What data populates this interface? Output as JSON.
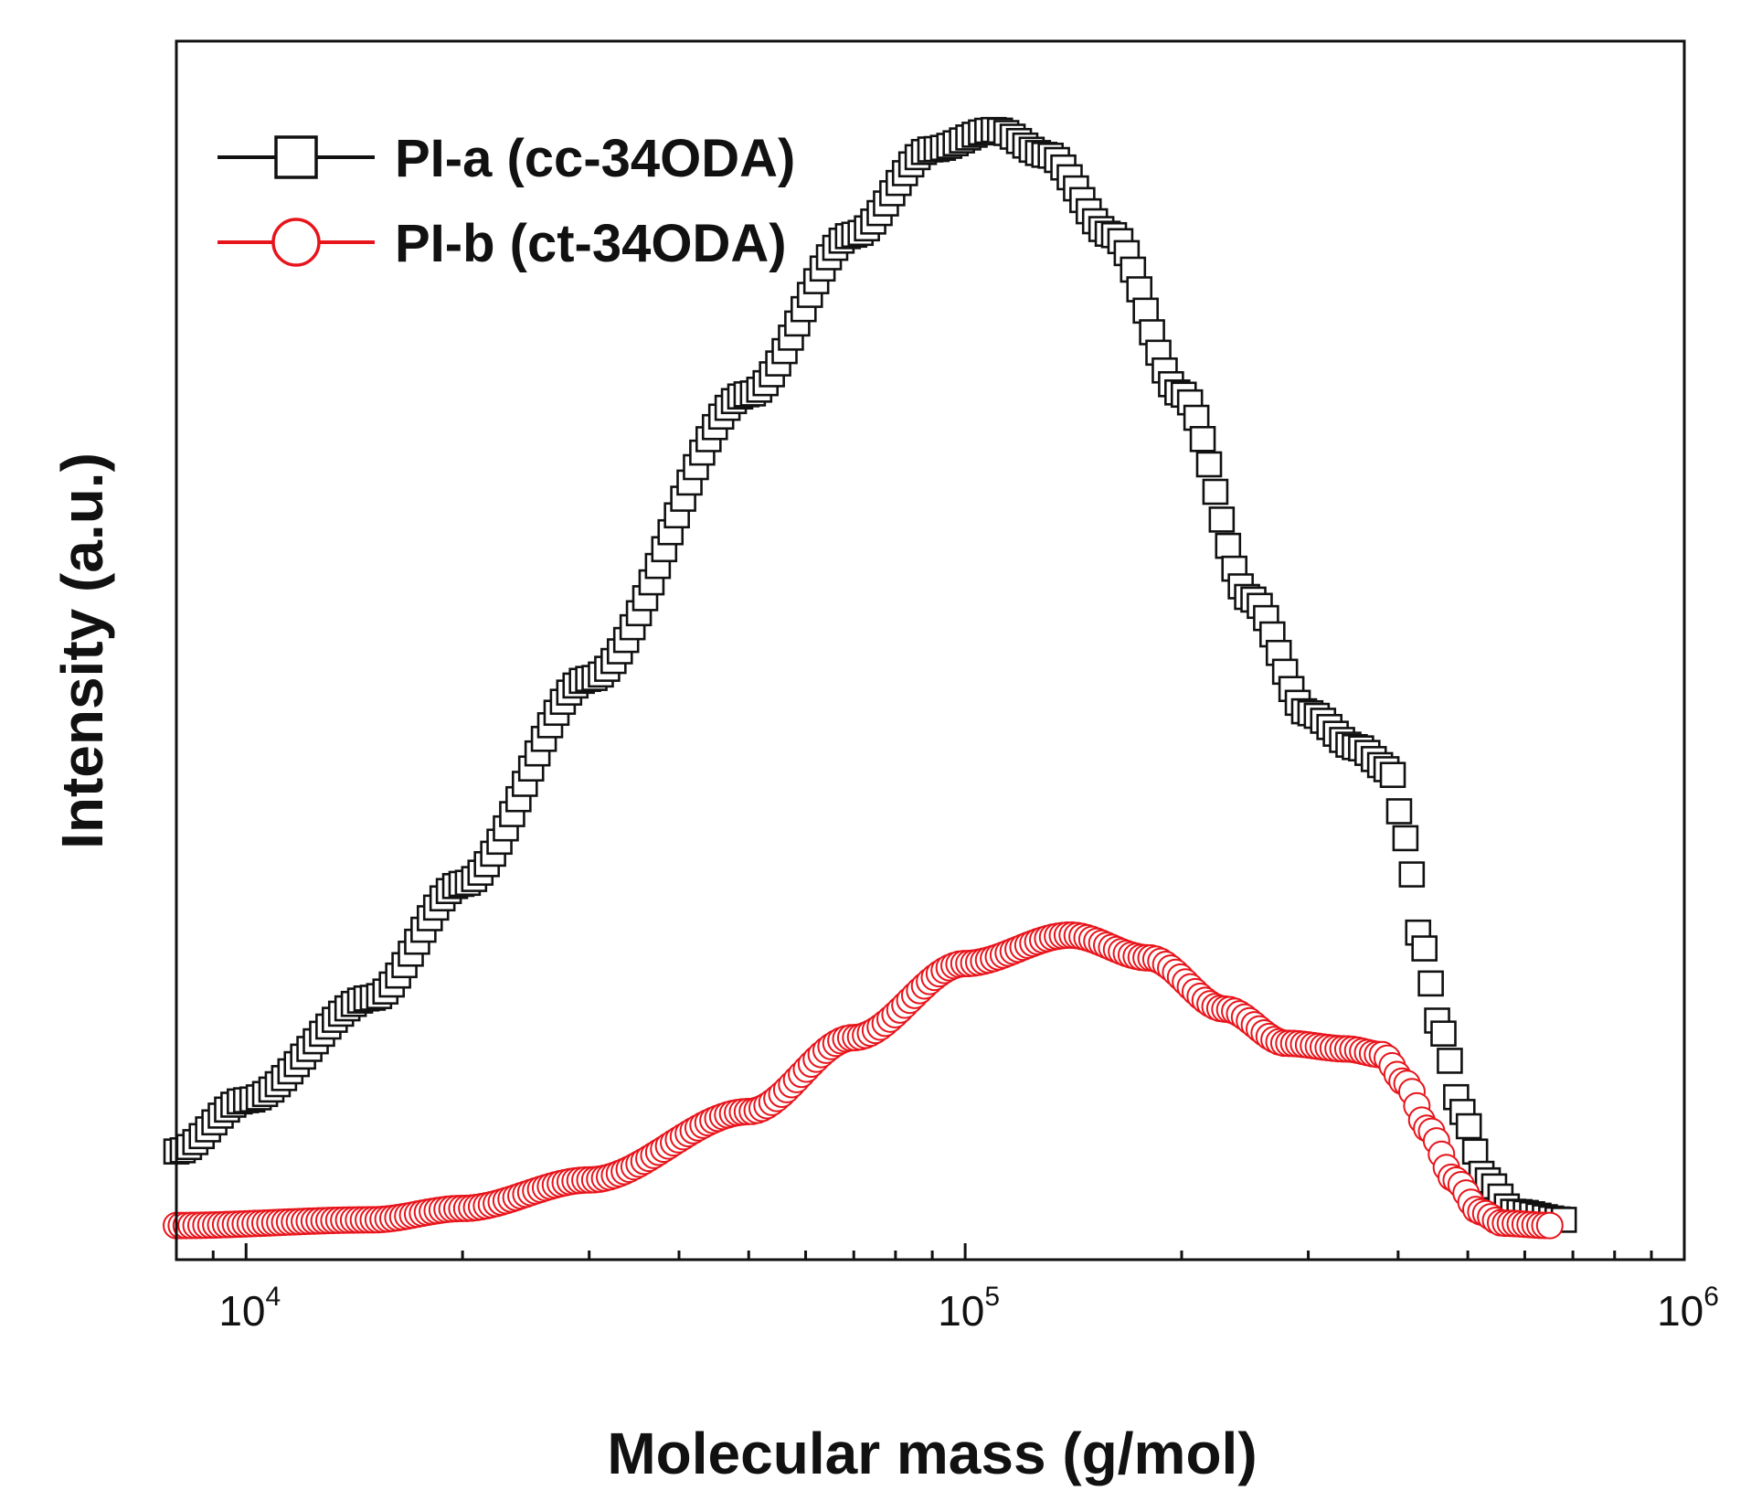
{
  "chart_data": {
    "type": "scatter",
    "xscale": "log",
    "xlabel": "Molecular mass (g/mol)",
    "ylabel": "Intensity (a.u.)",
    "xlim": [
      8000,
      1000000
    ],
    "ylim": [
      -0.03,
      1.04
    ],
    "yticks_shown": false,
    "legend_position": "top-left",
    "xticks": [
      {
        "value": 10000,
        "base": "10",
        "exp": "4"
      },
      {
        "value": 100000,
        "base": "10",
        "exp": "5"
      },
      {
        "value": 1000000,
        "base": "10",
        "exp": "6"
      }
    ],
    "series": [
      {
        "name": "PI-a (cc-34ODA)",
        "marker": "square",
        "color": "#111111",
        "x_start": 8000,
        "x_end": 680000,
        "n_points": 220,
        "anchors": [
          [
            8000,
            0.065
          ],
          [
            10000,
            0.11
          ],
          [
            15000,
            0.2
          ],
          [
            20000,
            0.3
          ],
          [
            30000,
            0.48
          ],
          [
            50000,
            0.73
          ],
          [
            70000,
            0.87
          ],
          [
            90000,
            0.945
          ],
          [
            110000,
            0.962
          ],
          [
            130000,
            0.94
          ],
          [
            160000,
            0.87
          ],
          [
            200000,
            0.73
          ],
          [
            250000,
            0.55
          ],
          [
            300000,
            0.45
          ],
          [
            350000,
            0.42
          ],
          [
            390000,
            0.4
          ],
          [
            410000,
            0.34
          ],
          [
            430000,
            0.25
          ],
          [
            460000,
            0.17
          ],
          [
            490000,
            0.1
          ],
          [
            530000,
            0.04
          ],
          [
            580000,
            0.012
          ],
          [
            680000,
            0.005
          ]
        ]
      },
      {
        "name": "PI-b (ct-34ODA)",
        "marker": "circle",
        "color": "#e8141b",
        "x_start": 8000,
        "x_end": 650000,
        "n_points": 280,
        "anchors": [
          [
            8000,
            0.0
          ],
          [
            15000,
            0.005
          ],
          [
            20000,
            0.015
          ],
          [
            30000,
            0.04
          ],
          [
            50000,
            0.1
          ],
          [
            70000,
            0.165
          ],
          [
            100000,
            0.23
          ],
          [
            140000,
            0.255
          ],
          [
            180000,
            0.235
          ],
          [
            230000,
            0.19
          ],
          [
            280000,
            0.16
          ],
          [
            340000,
            0.155
          ],
          [
            380000,
            0.15
          ],
          [
            410000,
            0.125
          ],
          [
            440000,
            0.085
          ],
          [
            480000,
            0.04
          ],
          [
            520000,
            0.012
          ],
          [
            560000,
            0.002
          ],
          [
            650000,
            0.0
          ]
        ]
      }
    ]
  }
}
